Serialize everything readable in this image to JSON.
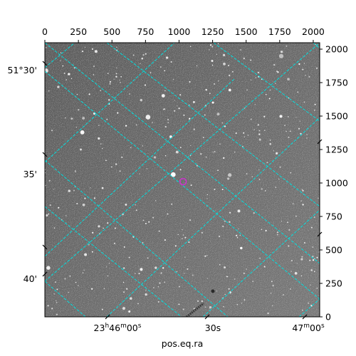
{
  "colors": {
    "grid": "#00e0e0",
    "marker": "#cc33cc",
    "sky_background": "#6e6e6e",
    "axes_frame": "#000000"
  },
  "chart_data": {
    "type": "scatter",
    "title": "",
    "xlabel": "pos.eq.ra",
    "ylabel": "",
    "pixel_axes": {
      "x_ticks": [
        0,
        250,
        500,
        750,
        1000,
        1250,
        1500,
        1750,
        2000
      ],
      "x_tick_labels": [
        "0",
        "250",
        "500",
        "750",
        "1000",
        "1250",
        "1500",
        "1750",
        "2000"
      ],
      "y_ticks": [
        0,
        250,
        500,
        750,
        1000,
        1250,
        1500,
        1750,
        2000
      ],
      "y_tick_labels": [
        "0",
        "250",
        "500",
        "750",
        "1000",
        "1250",
        "1500",
        "1750",
        "2000"
      ],
      "xlim": [
        0,
        2048
      ],
      "ylim": [
        0,
        2048
      ]
    },
    "world_axes": {
      "ra_tick_labels": [
        "23h46m00s",
        "30s",
        "47m00s"
      ],
      "dec_tick_labels": [
        "51°30'",
        "35'",
        "40'"
      ]
    },
    "grid": true,
    "grid_style": "dashed",
    "marker": {
      "shape": "circle",
      "x": 1030,
      "y": 1010
    }
  }
}
